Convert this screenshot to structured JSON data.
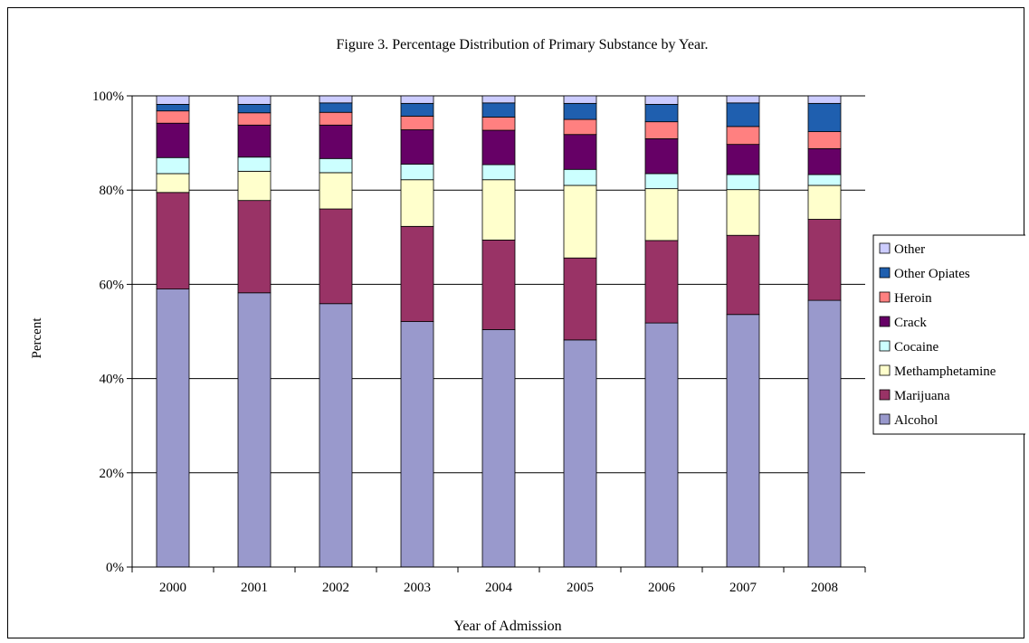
{
  "chart_data": {
    "type": "bar",
    "stacked": true,
    "percent_stacked": true,
    "title": "Figure 3. Percentage Distribution of Primary Substance by Year.",
    "xlabel": "Year of Admission",
    "ylabel": "Percent",
    "ylim": [
      0,
      100
    ],
    "yticks": [
      "0%",
      "20%",
      "40%",
      "60%",
      "80%",
      "100%"
    ],
    "grid": true,
    "legend_position": "right",
    "categories": [
      "2000",
      "2001",
      "2002",
      "2003",
      "2004",
      "2005",
      "2006",
      "2007",
      "2008"
    ],
    "series": [
      {
        "name": "Alcohol",
        "color": "#9999cc",
        "values": [
          59.0,
          58.2,
          55.9,
          52.1,
          50.4,
          48.2,
          51.8,
          53.6,
          56.6
        ]
      },
      {
        "name": "Marijuana",
        "color": "#993366",
        "values": [
          20.5,
          19.6,
          20.1,
          20.2,
          19.0,
          17.4,
          17.5,
          16.8,
          17.2
        ]
      },
      {
        "name": "Methamphetamine",
        "color": "#ffffcc",
        "values": [
          4.0,
          6.2,
          7.7,
          9.9,
          12.8,
          15.4,
          11.0,
          9.7,
          7.2
        ]
      },
      {
        "name": "Cocaine",
        "color": "#ccffff",
        "values": [
          3.4,
          3.0,
          3.0,
          3.3,
          3.2,
          3.4,
          3.2,
          3.2,
          2.3
        ]
      },
      {
        "name": "Crack",
        "color": "#660066",
        "values": [
          7.3,
          6.8,
          7.1,
          7.3,
          7.3,
          7.4,
          7.4,
          6.4,
          5.5
        ]
      },
      {
        "name": "Heroin",
        "color": "#ff8080",
        "values": [
          2.6,
          2.6,
          2.7,
          2.9,
          2.8,
          3.2,
          3.6,
          3.8,
          3.6
        ]
      },
      {
        "name": "Other Opiates",
        "color": "#1f5faf",
        "values": [
          1.4,
          1.8,
          2.0,
          2.7,
          3.0,
          3.4,
          3.7,
          5.0,
          6.0
        ]
      },
      {
        "name": "Other",
        "color": "#ccccff",
        "values": [
          1.8,
          1.8,
          1.5,
          1.6,
          1.5,
          1.6,
          1.8,
          1.5,
          1.6
        ]
      }
    ]
  }
}
